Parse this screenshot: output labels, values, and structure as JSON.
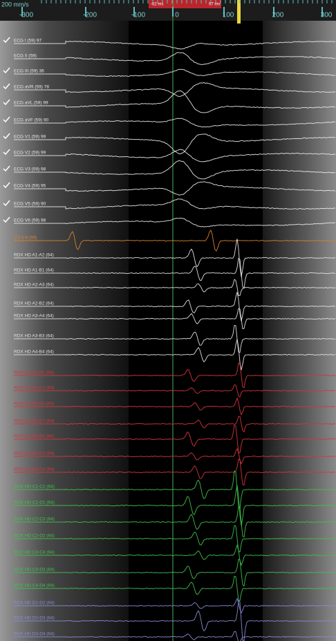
{
  "ruler": {
    "speed": "200 mm/s",
    "labels": [
      "-300",
      "-200",
      "-100",
      "0",
      "100",
      "200",
      "300"
    ],
    "markers": [
      "-62 ms",
      "97 ms"
    ]
  },
  "channels": [
    {
      "label": "ECG I (59) 97",
      "color": "#e8e8e8",
      "checked": true
    },
    {
      "label": "ECG II (59)",
      "color": "#e8e8e8",
      "checked": false
    },
    {
      "label": "ECG III (59) 36",
      "color": "#e8e8e8",
      "checked": true
    },
    {
      "label": "ECG aVR (59) 78",
      "color": "#e8e8e8",
      "checked": true
    },
    {
      "label": "ECG aVL (59) 99",
      "color": "#e8e8e8",
      "checked": true
    },
    {
      "label": "ECG aVF (59) 90",
      "color": "#e8e8e8",
      "checked": true
    },
    {
      "label": "ECG V1 (59) 99",
      "color": "#e8e8e8",
      "checked": true
    },
    {
      "label": "ECG V2 (59) 99",
      "color": "#e8e8e8",
      "checked": true
    },
    {
      "label": "ECG V3 (59) 98",
      "color": "#e8e8e8",
      "checked": true
    },
    {
      "label": "ECG V4 (59) 95",
      "color": "#e8e8e8",
      "checked": true
    },
    {
      "label": "ECG V5 (59) 90",
      "color": "#e8e8e8",
      "checked": true
    },
    {
      "label": "ECG V6 (59) 98",
      "color": "#e8e8e8",
      "checked": true
    },
    {
      "label": "CS 5-6 (59)",
      "color": "#d9822b",
      "checked": false
    },
    {
      "label": "RDX HD A1-A2 (64)",
      "color": "#e0e0e0",
      "checked": false
    },
    {
      "label": "RDX HD A1-B1 (64)",
      "color": "#e0e0e0",
      "checked": false
    },
    {
      "label": "RDX HD A2-A3 (64)",
      "color": "#e0e0e0",
      "checked": false
    },
    {
      "label": "RDX HD A2-B2 (64)",
      "color": "#e0e0e0",
      "checked": false
    },
    {
      "label": "RDX HD A3-A4 (64)",
      "color": "#e0e0e0",
      "checked": false
    },
    {
      "label": "RDX HD A3-B3 (64)",
      "color": "#e0e0e0",
      "checked": false
    },
    {
      "label": "RDX HD A4-B4 (64)",
      "color": "#e0e0e0",
      "checked": false
    },
    {
      "label": "RDX HD B1-B2 (64)",
      "color": "#d8343c",
      "checked": false
    },
    {
      "label": "RDX HD B1-C1 (64)",
      "color": "#d8343c",
      "checked": false
    },
    {
      "label": "RDX HD B2-B3 (64)",
      "color": "#d8343c",
      "checked": false
    },
    {
      "label": "RDX HD B2-C2 (64)",
      "color": "#d8343c",
      "checked": false
    },
    {
      "label": "RDX HD B3-B4 (64)",
      "color": "#d8343c",
      "checked": false
    },
    {
      "label": "RDX HD B3-C3 (64)",
      "color": "#d8343c",
      "checked": false
    },
    {
      "label": "RDX HD B4-C4 (64)",
      "color": "#d8343c",
      "checked": false
    },
    {
      "label": "RDX HD C1-C2 (64)",
      "color": "#3fc24a",
      "checked": false
    },
    {
      "label": "RDX HD C1-D1 (64)",
      "color": "#3fc24a",
      "checked": false
    },
    {
      "label": "RDX HD C2-C3 (64)",
      "color": "#3fc24a",
      "checked": false
    },
    {
      "label": "RDX HD C2-D2 (64)",
      "color": "#3fc24a",
      "checked": false
    },
    {
      "label": "RDX HD C3-C4 (64)",
      "color": "#3fc24a",
      "checked": false
    },
    {
      "label": "RDX HD C3-D3 (64)",
      "color": "#3fc24a",
      "checked": false
    },
    {
      "label": "RDX HD C4-D4 (64)",
      "color": "#3fc24a",
      "checked": false
    },
    {
      "label": "RDX HD D1-D2 (64)",
      "color": "#8a8ad8",
      "checked": false
    },
    {
      "label": "RDX HD D2-D3 (64)",
      "color": "#8a8ad8",
      "checked": false
    },
    {
      "label": "RDX HD D3-D4 (64)",
      "color": "#8a8ad8",
      "checked": false
    }
  ]
}
